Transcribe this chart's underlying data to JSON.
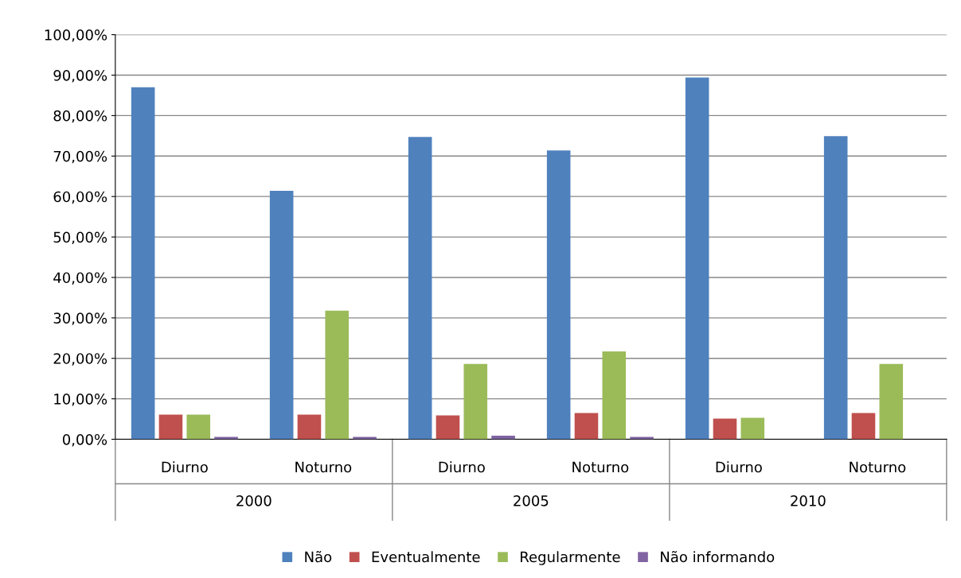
{
  "chart_data": {
    "type": "bar",
    "categories": [
      "Diurno",
      "Noturno",
      "Diurno",
      "Noturno",
      "Diurno",
      "Noturno"
    ],
    "annotations": [
      "2000",
      "2005",
      "2010"
    ],
    "series": [
      {
        "name": "Não",
        "color": "#4f81bd",
        "values": [
          87.0,
          61.4,
          74.7,
          71.4,
          89.4,
          74.9
        ]
      },
      {
        "name": "Eventualmente",
        "color": "#c0504d",
        "values": [
          6.1,
          6.1,
          5.9,
          6.5,
          5.1,
          6.5
        ]
      },
      {
        "name": "Regularmente",
        "color": "#9bbb59",
        "values": [
          6.1,
          31.8,
          18.6,
          21.7,
          5.3,
          18.6
        ]
      },
      {
        "name": "Não informando",
        "color": "#8064a2",
        "values": [
          0.6,
          0.6,
          0.9,
          0.6,
          null,
          null
        ]
      }
    ],
    "ylim": [
      0,
      100
    ],
    "yticks": [
      {
        "value": 0,
        "label": "0,00%"
      },
      {
        "value": 10,
        "label": "10,00%"
      },
      {
        "value": 20,
        "label": "20,00%"
      },
      {
        "value": 30,
        "label": "30,00%"
      },
      {
        "value": 40,
        "label": "40,00%"
      },
      {
        "value": 50,
        "label": "50,00%"
      },
      {
        "value": 60,
        "label": "60,00%"
      },
      {
        "value": 70,
        "label": "70,00%"
      },
      {
        "value": 80,
        "label": "80,00%"
      },
      {
        "value": 90,
        "label": "90,00%"
      },
      {
        "value": 100,
        "label": "100,00%"
      }
    ],
    "grid": "y",
    "legend": "bottom"
  }
}
